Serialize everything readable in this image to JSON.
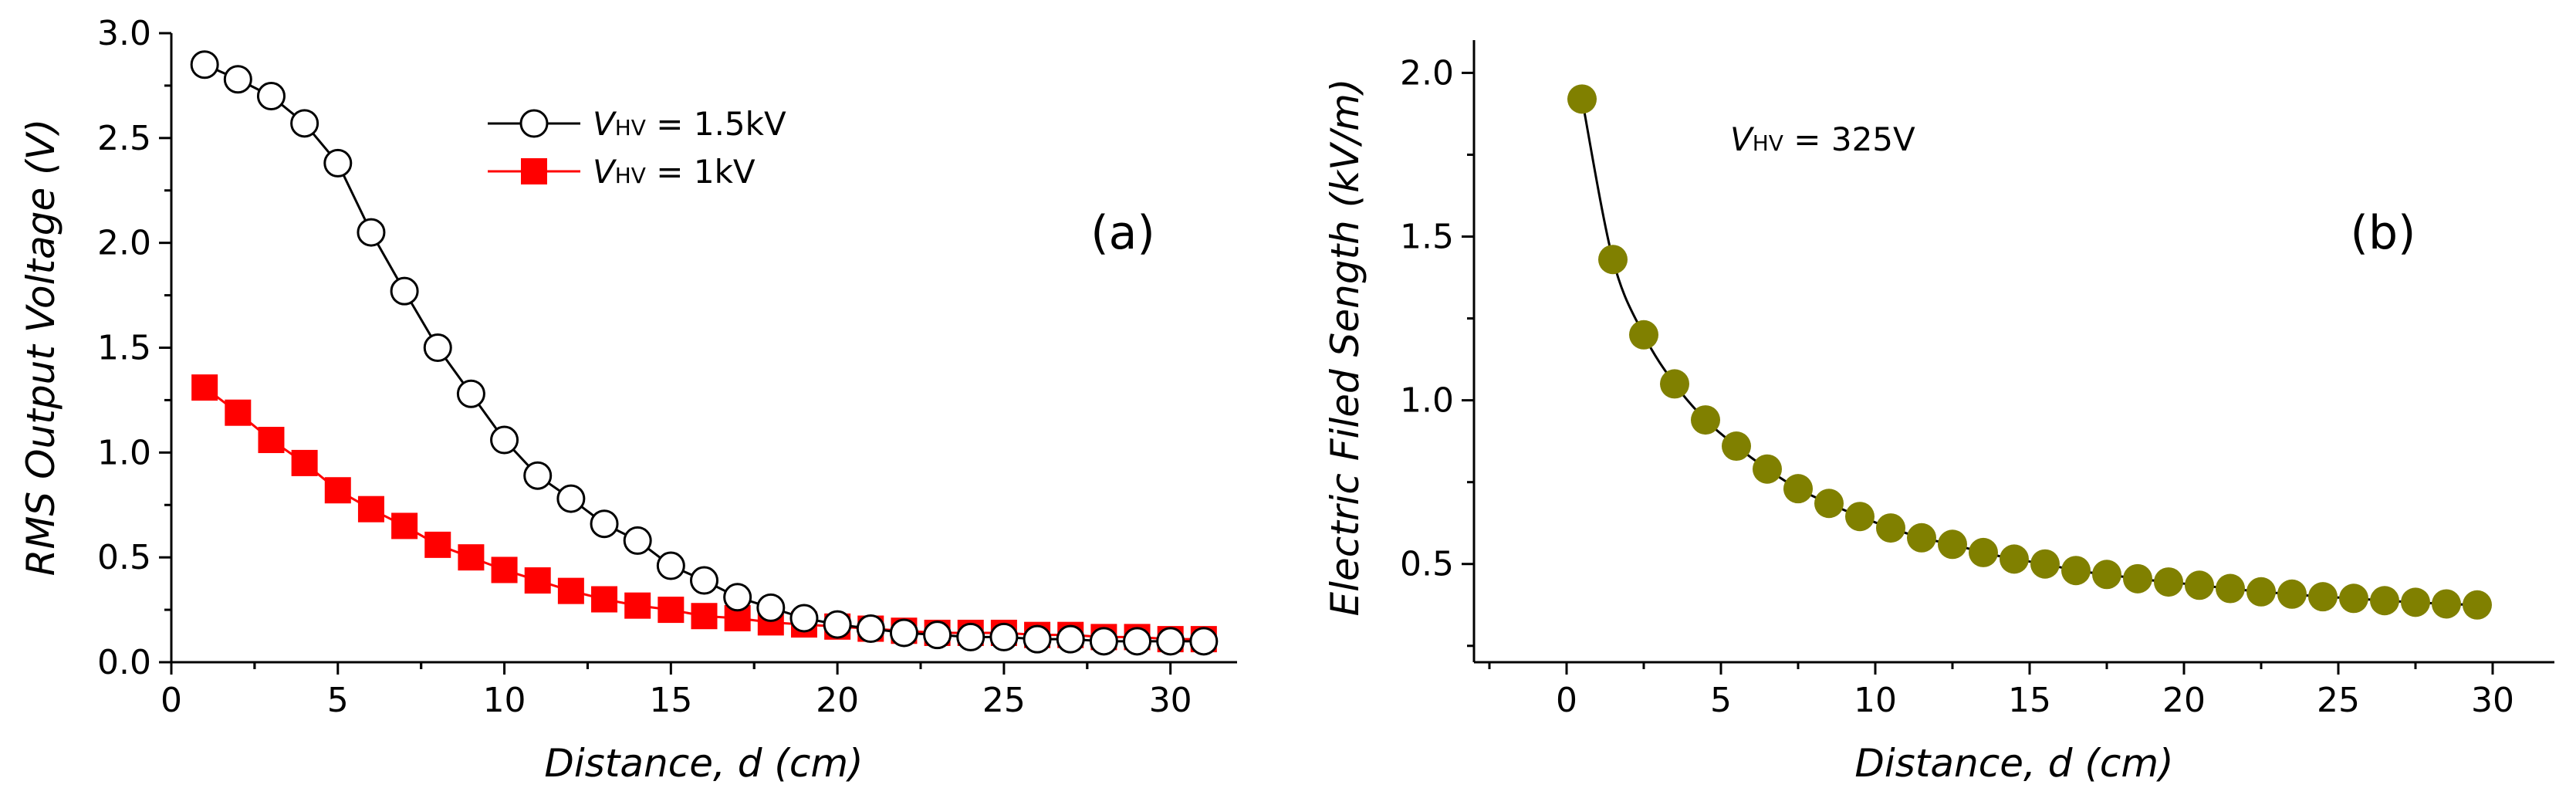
{
  "chart_data": [
    {
      "type": "line",
      "panel_label": "(a)",
      "xlabel": "Distance, d (cm)",
      "ylabel": "RMS Output Voltage (V)",
      "xlim": [
        0,
        32
      ],
      "ylim": [
        0,
        3.0
      ],
      "xticks": [
        0,
        5,
        10,
        15,
        20,
        25,
        30
      ],
      "yticks": [
        0.0,
        0.5,
        1.0,
        1.5,
        2.0,
        2.5,
        3.0
      ],
      "x_tick_labels": [
        "0",
        "5",
        "10",
        "15",
        "20",
        "25",
        "30"
      ],
      "y_tick_labels": [
        "0.0",
        "0.5",
        "1.0",
        "1.5",
        "2.0",
        "2.5",
        "3.0"
      ],
      "legend_position": "top-center",
      "series": [
        {
          "name": "VHV = 1.5kV",
          "legend_main": "V",
          "legend_sub": "HV",
          "legend_rest": " = 1.5kV",
          "marker": "open-circle",
          "color": "#000000",
          "x": [
            1,
            2,
            3,
            4,
            5,
            6,
            7,
            8,
            9,
            10,
            11,
            12,
            13,
            14,
            15,
            16,
            17,
            18,
            19,
            20,
            21,
            22,
            23,
            24,
            25,
            26,
            27,
            28,
            29,
            30,
            31
          ],
          "values": [
            2.85,
            2.78,
            2.7,
            2.57,
            2.38,
            2.05,
            1.77,
            1.5,
            1.28,
            1.06,
            0.89,
            0.78,
            0.66,
            0.58,
            0.46,
            0.39,
            0.31,
            0.26,
            0.21,
            0.18,
            0.16,
            0.14,
            0.13,
            0.12,
            0.12,
            0.11,
            0.11,
            0.1,
            0.1,
            0.1,
            0.1
          ]
        },
        {
          "name": "VHV = 1kV",
          "legend_main": "V",
          "legend_sub": "HV",
          "legend_rest": " = 1kV",
          "marker": "filled-square",
          "color": "#ff0000",
          "x": [
            1,
            2,
            3,
            4,
            5,
            6,
            7,
            8,
            9,
            10,
            11,
            12,
            13,
            14,
            15,
            16,
            17,
            18,
            19,
            20,
            21,
            22,
            23,
            24,
            25,
            26,
            27,
            28,
            29,
            30,
            31
          ],
          "values": [
            1.31,
            1.19,
            1.06,
            0.95,
            0.82,
            0.73,
            0.65,
            0.56,
            0.5,
            0.44,
            0.39,
            0.34,
            0.3,
            0.27,
            0.25,
            0.22,
            0.21,
            0.19,
            0.18,
            0.17,
            0.16,
            0.15,
            0.14,
            0.14,
            0.14,
            0.13,
            0.13,
            0.12,
            0.12,
            0.11,
            0.11
          ]
        }
      ]
    },
    {
      "type": "scatter",
      "panel_label": "(b)",
      "xlabel": "Distance, d (cm)",
      "ylabel": "Electric Filed Sength (kV/m)",
      "xlim": [
        -3,
        32
      ],
      "ylim": [
        0.2,
        2.1
      ],
      "xticks": [
        0,
        5,
        10,
        15,
        20,
        25,
        30
      ],
      "yticks": [
        0.5,
        1.0,
        1.5,
        2.0
      ],
      "x_tick_labels": [
        "0",
        "5",
        "10",
        "15",
        "20",
        "25",
        "30"
      ],
      "y_tick_labels": [
        "0.5",
        "1.0",
        "1.5",
        "2.0"
      ],
      "annotation": {
        "main": "V",
        "sub": "HV",
        "rest": " = 325V"
      },
      "series": [
        {
          "name": "Electric field",
          "marker": "filled-circle",
          "color": "#808000",
          "fit_line_color": "#000000",
          "x": [
            0.5,
            1.5,
            2.5,
            3.5,
            4.5,
            5.5,
            6.5,
            7.5,
            8.5,
            9.5,
            10.5,
            11.5,
            12.5,
            13.5,
            14.5,
            15.5,
            16.5,
            17.5,
            18.5,
            19.5,
            20.5,
            21.5,
            22.5,
            23.5,
            24.5,
            25.5,
            26.5,
            27.5,
            28.5,
            29.5
          ],
          "values": [
            1.92,
            1.43,
            1.2,
            1.05,
            0.94,
            0.86,
            0.79,
            0.73,
            0.685,
            0.645,
            0.61,
            0.58,
            0.56,
            0.535,
            0.515,
            0.5,
            0.48,
            0.468,
            0.455,
            0.445,
            0.435,
            0.425,
            0.415,
            0.408,
            0.4,
            0.395,
            0.388,
            0.383,
            0.378,
            0.375
          ]
        }
      ]
    }
  ]
}
